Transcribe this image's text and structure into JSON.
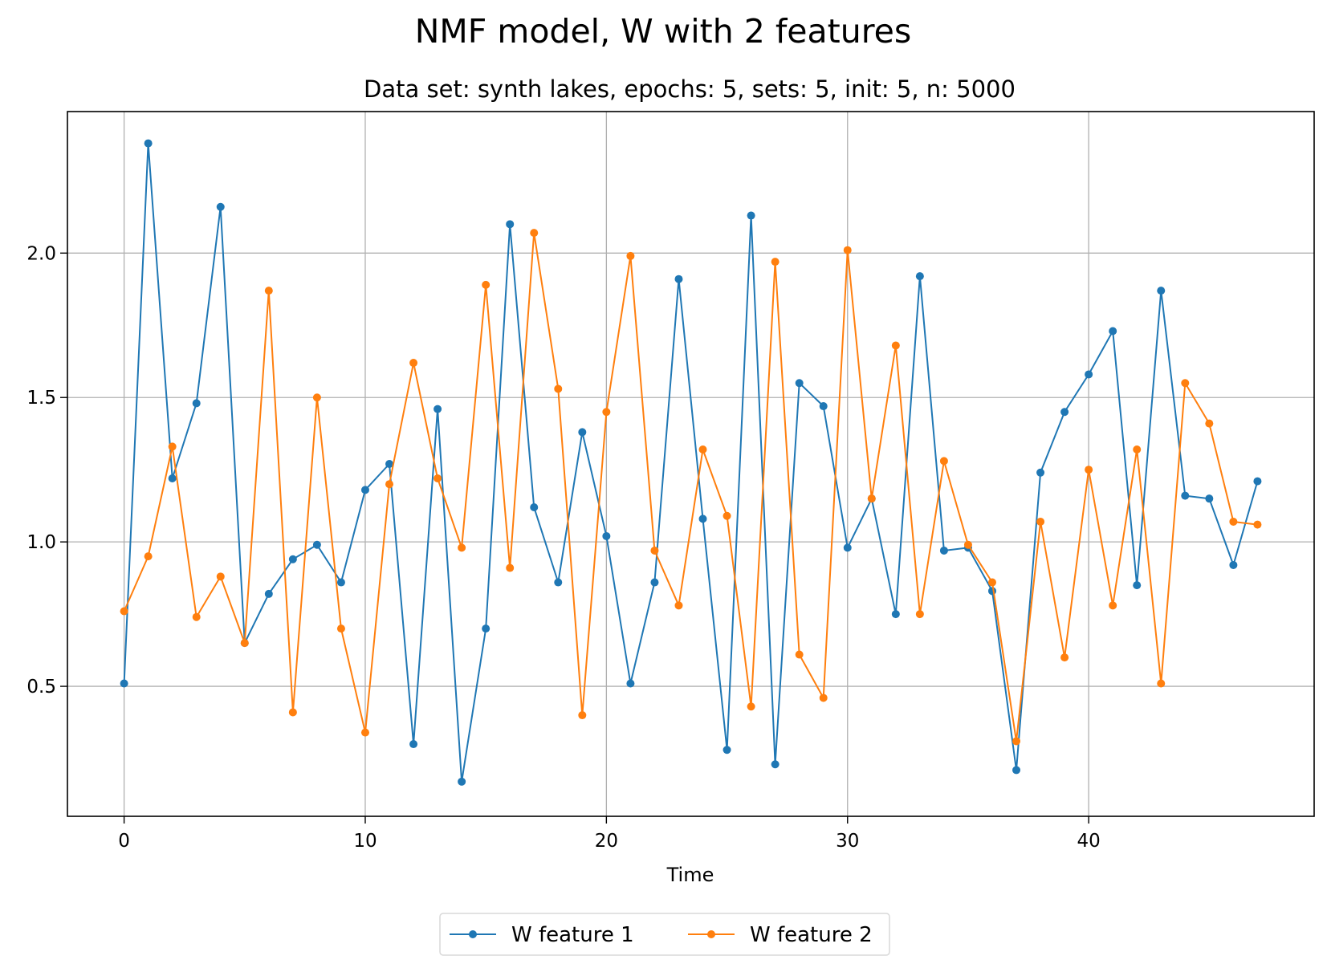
{
  "chart_data": {
    "type": "line",
    "title": "NMF model, W with 2 features",
    "subtitle": "Data set: synth lakes, epochs: 5, sets: 5, init: 5, n: 5000",
    "xlabel": "Time",
    "ylabel": "",
    "xlim": [
      -2.35,
      49.35
    ],
    "ylim": [
      0.05,
      2.49
    ],
    "x_ticks": [
      0,
      10,
      20,
      30,
      40
    ],
    "x_tick_labels": [
      "0",
      "10",
      "20",
      "30",
      "40"
    ],
    "y_ticks": [
      0.5,
      1.0,
      1.5,
      2.0
    ],
    "y_tick_labels": [
      "0.5",
      "1.0",
      "1.5",
      "2.0"
    ],
    "grid": true,
    "legend_position": "bottom-center, below plot",
    "x": [
      0,
      1,
      2,
      3,
      4,
      5,
      6,
      7,
      8,
      9,
      10,
      11,
      12,
      13,
      14,
      15,
      16,
      17,
      18,
      19,
      20,
      21,
      22,
      23,
      24,
      25,
      26,
      27,
      28,
      29,
      30,
      31,
      32,
      33,
      34,
      35,
      36,
      37,
      38,
      39,
      40,
      41,
      42,
      43,
      44,
      45,
      46,
      47
    ],
    "series": [
      {
        "name": "W feature 1",
        "color": "#1f77b4",
        "values": [
          0.51,
          2.38,
          1.22,
          1.48,
          2.16,
          0.65,
          0.82,
          0.94,
          0.99,
          0.86,
          1.18,
          1.27,
          0.3,
          1.46,
          0.17,
          0.7,
          2.1,
          1.12,
          0.86,
          1.38,
          1.02,
          0.51,
          0.86,
          1.91,
          1.08,
          0.28,
          2.13,
          0.23,
          1.55,
          1.47,
          0.98,
          1.15,
          0.75,
          1.92,
          0.97,
          0.98,
          0.83,
          0.21,
          1.24,
          1.45,
          1.58,
          1.73,
          0.85,
          1.87,
          1.16,
          1.15,
          0.92,
          1.21
        ]
      },
      {
        "name": "W feature 2",
        "color": "#ff7f0e",
        "values": [
          0.76,
          0.95,
          1.33,
          0.74,
          0.88,
          0.65,
          1.87,
          0.41,
          1.5,
          0.7,
          0.34,
          1.2,
          1.62,
          1.22,
          0.98,
          1.89,
          0.91,
          2.07,
          1.53,
          0.4,
          1.45,
          1.99,
          0.97,
          0.78,
          1.32,
          1.09,
          0.43,
          1.97,
          0.61,
          0.46,
          2.01,
          1.15,
          1.68,
          0.75,
          1.28,
          0.99,
          0.86,
          0.31,
          1.07,
          0.6,
          1.25,
          0.78,
          1.32,
          0.51,
          1.55,
          1.41,
          1.07,
          1.06
        ]
      }
    ]
  }
}
